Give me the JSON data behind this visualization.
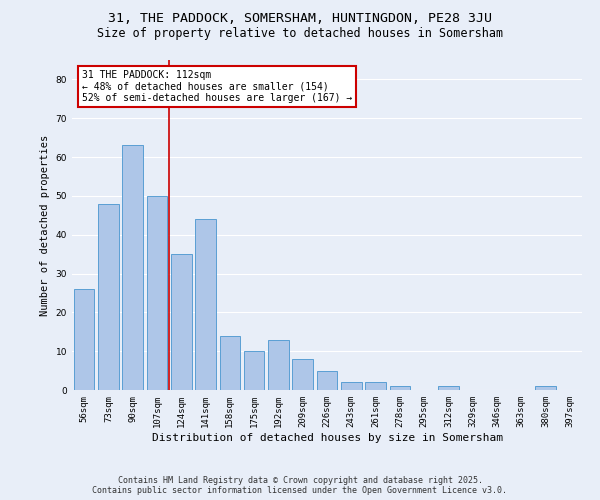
{
  "title1": "31, THE PADDOCK, SOMERSHAM, HUNTINGDON, PE28 3JU",
  "title2": "Size of property relative to detached houses in Somersham",
  "xlabel": "Distribution of detached houses by size in Somersham",
  "ylabel": "Number of detached properties",
  "categories": [
    "56sqm",
    "73sqm",
    "90sqm",
    "107sqm",
    "124sqm",
    "141sqm",
    "158sqm",
    "175sqm",
    "192sqm",
    "209sqm",
    "226sqm",
    "243sqm",
    "261sqm",
    "278sqm",
    "295sqm",
    "312sqm",
    "329sqm",
    "346sqm",
    "363sqm",
    "380sqm",
    "397sqm"
  ],
  "values": [
    26,
    48,
    63,
    50,
    35,
    44,
    14,
    10,
    13,
    8,
    5,
    2,
    2,
    1,
    0,
    1,
    0,
    0,
    0,
    1,
    0
  ],
  "bar_color": "#aec6e8",
  "bar_edge_color": "#5a9fd4",
  "annotation_text": "31 THE PADDOCK: 112sqm\n← 48% of detached houses are smaller (154)\n52% of semi-detached houses are larger (167) →",
  "annotation_box_color": "#ffffff",
  "annotation_box_edge": "#cc0000",
  "vline_color": "#cc0000",
  "vline_x": 3.5,
  "ylim": [
    0,
    85
  ],
  "yticks": [
    0,
    10,
    20,
    30,
    40,
    50,
    60,
    70,
    80
  ],
  "background_color": "#e8eef8",
  "footer1": "Contains HM Land Registry data © Crown copyright and database right 2025.",
  "footer2": "Contains public sector information licensed under the Open Government Licence v3.0.",
  "grid_color": "#ffffff",
  "title_fontsize": 9.5,
  "subtitle_fontsize": 8.5,
  "tick_fontsize": 6.5,
  "ylabel_fontsize": 7.5,
  "xlabel_fontsize": 8,
  "annotation_fontsize": 7,
  "footer_fontsize": 6
}
